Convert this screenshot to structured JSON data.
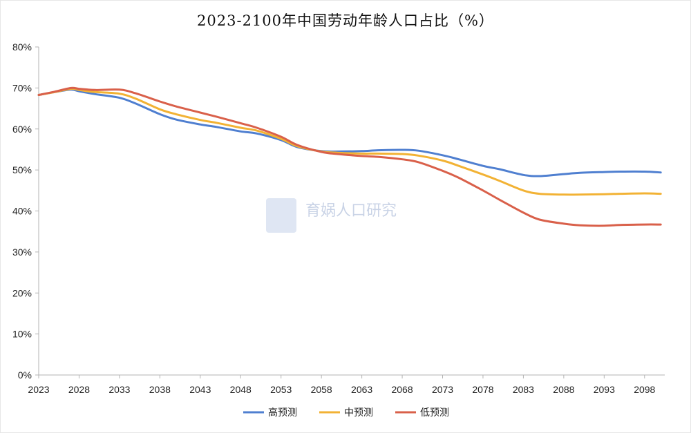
{
  "chart_data": {
    "type": "line",
    "title": "2023-2100年中国劳动年龄人口占比（%）",
    "watermark": "育娲人口研究",
    "ylim": [
      0,
      80
    ],
    "y_ticks": [
      "0%",
      "10%",
      "20%",
      "30%",
      "40%",
      "50%",
      "60%",
      "70%",
      "80%"
    ],
    "x_ticks": [
      "2023",
      "2028",
      "2033",
      "2038",
      "2043",
      "2048",
      "2053",
      "2058",
      "2063",
      "2068",
      "2073",
      "2078",
      "2083",
      "2088",
      "2093",
      "2098"
    ],
    "xlim": [
      2023,
      2100.5
    ],
    "grid": false,
    "legend_position": "bottom",
    "series": [
      {
        "name": "高预测",
        "color": "#4f7fd0",
        "x": [
          2023,
          2025,
          2027,
          2028,
          2030,
          2033,
          2035,
          2038,
          2040,
          2043,
          2045,
          2048,
          2050,
          2053,
          2055,
          2058,
          2060,
          2063,
          2065,
          2068,
          2070,
          2073,
          2075,
          2078,
          2080,
          2083,
          2085,
          2088,
          2090,
          2093,
          2095,
          2098,
          2100
        ],
        "values": [
          68.3,
          69.0,
          69.6,
          69.2,
          68.5,
          67.6,
          66.2,
          63.6,
          62.3,
          61.1,
          60.5,
          59.4,
          58.9,
          57.3,
          55.6,
          54.6,
          54.5,
          54.6,
          54.8,
          54.9,
          54.7,
          53.6,
          52.6,
          51.0,
          50.2,
          48.8,
          48.5,
          49.0,
          49.3,
          49.5,
          49.6,
          49.6,
          49.4
        ]
      },
      {
        "name": "中预测",
        "color": "#f2b234",
        "x": [
          2023,
          2025,
          2027,
          2028,
          2030,
          2033,
          2035,
          2038,
          2040,
          2043,
          2045,
          2048,
          2050,
          2053,
          2055,
          2058,
          2060,
          2063,
          2065,
          2068,
          2070,
          2073,
          2075,
          2078,
          2080,
          2083,
          2085,
          2088,
          2090,
          2093,
          2095,
          2098,
          2100
        ],
        "values": [
          68.3,
          69.0,
          69.8,
          69.5,
          69.0,
          68.6,
          67.4,
          64.8,
          63.6,
          62.2,
          61.5,
          60.3,
          59.6,
          57.6,
          55.8,
          54.5,
          54.2,
          54.0,
          54.0,
          53.9,
          53.5,
          52.3,
          51.0,
          48.9,
          47.4,
          45.0,
          44.2,
          44.0,
          44.0,
          44.1,
          44.2,
          44.3,
          44.2
        ]
      },
      {
        "name": "低预测",
        "color": "#d9604a",
        "x": [
          2023,
          2025,
          2027,
          2028,
          2030,
          2033,
          2035,
          2038,
          2040,
          2043,
          2045,
          2048,
          2050,
          2053,
          2055,
          2058,
          2060,
          2063,
          2065,
          2068,
          2070,
          2073,
          2075,
          2078,
          2080,
          2083,
          2085,
          2088,
          2090,
          2093,
          2095,
          2098,
          2100
        ],
        "values": [
          68.3,
          69.1,
          70.0,
          69.8,
          69.5,
          69.6,
          68.7,
          66.7,
          65.5,
          64.0,
          63.0,
          61.4,
          60.3,
          58.1,
          56.1,
          54.4,
          53.9,
          53.4,
          53.2,
          52.6,
          51.9,
          49.8,
          48.1,
          45.0,
          42.8,
          39.6,
          37.9,
          36.9,
          36.5,
          36.4,
          36.6,
          36.7,
          36.7
        ]
      }
    ]
  }
}
